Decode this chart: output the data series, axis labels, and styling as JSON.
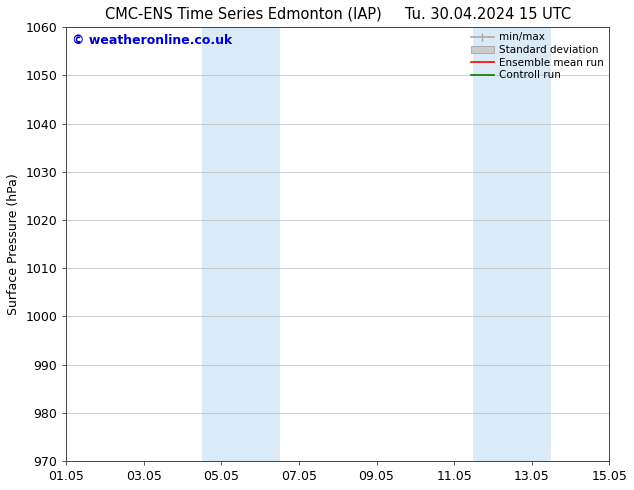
{
  "title_left": "CMC-ENS Time Series Edmonton (IAP)",
  "title_right": "Tu. 30.04.2024 15 UTC",
  "ylabel": "Surface Pressure (hPa)",
  "ylim": [
    970,
    1060
  ],
  "yticks": [
    970,
    980,
    990,
    1000,
    1010,
    1020,
    1030,
    1040,
    1050,
    1060
  ],
  "xlim_start": 0,
  "xlim_end": 14,
  "xtick_positions": [
    0,
    2,
    4,
    6,
    8,
    10,
    12,
    14
  ],
  "xtick_labels": [
    "01.05",
    "03.05",
    "05.05",
    "07.05",
    "09.05",
    "11.05",
    "13.05",
    "15.05"
  ],
  "shaded_bands": [
    {
      "x_start": 3.5,
      "x_end": 5.5
    },
    {
      "x_start": 10.5,
      "x_end": 12.5
    }
  ],
  "shaded_color": "#daeaf7",
  "watermark_text": "© weatheronline.co.uk",
  "watermark_color": "#0000cc",
  "legend_entries": [
    {
      "label": "min/max",
      "color": "#aaaaaa",
      "lw": 1.2,
      "style": "minmax"
    },
    {
      "label": "Standard deviation",
      "color": "#cccccc",
      "lw": 7,
      "style": "band"
    },
    {
      "label": "Ensemble mean run",
      "color": "#ff0000",
      "lw": 1.2,
      "style": "line"
    },
    {
      "label": "Controll run",
      "color": "#008000",
      "lw": 1.2,
      "style": "line"
    }
  ],
  "bg_color": "#ffffff",
  "grid_color": "#bbbbbb",
  "title_fontsize": 10.5,
  "axis_fontsize": 9,
  "tick_fontsize": 9,
  "watermark_fontsize": 9
}
